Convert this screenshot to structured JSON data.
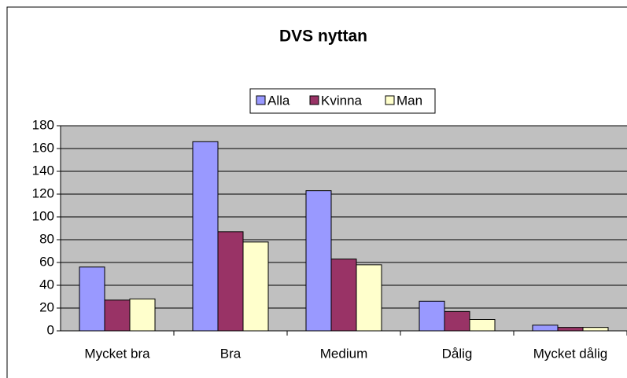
{
  "chart_data": {
    "type": "bar",
    "title": "DVS nyttan",
    "categories": [
      "Mycket bra",
      "Bra",
      "Medium",
      "Dålig",
      "Mycket dålig"
    ],
    "series": [
      {
        "name": "Alla",
        "color": "#9999ff",
        "values": [
          56,
          166,
          123,
          26,
          5
        ]
      },
      {
        "name": "Kvinna",
        "color": "#993366",
        "values": [
          27,
          87,
          63,
          17,
          3
        ]
      },
      {
        "name": "Man",
        "color": "#ffffcc",
        "values": [
          28,
          78,
          58,
          10,
          3
        ]
      }
    ],
    "ylim": [
      0,
      180
    ],
    "yticks": [
      0,
      20,
      40,
      60,
      80,
      100,
      120,
      140,
      160,
      180
    ],
    "grid": true,
    "legend": "top",
    "background": "#c0c0c0"
  }
}
